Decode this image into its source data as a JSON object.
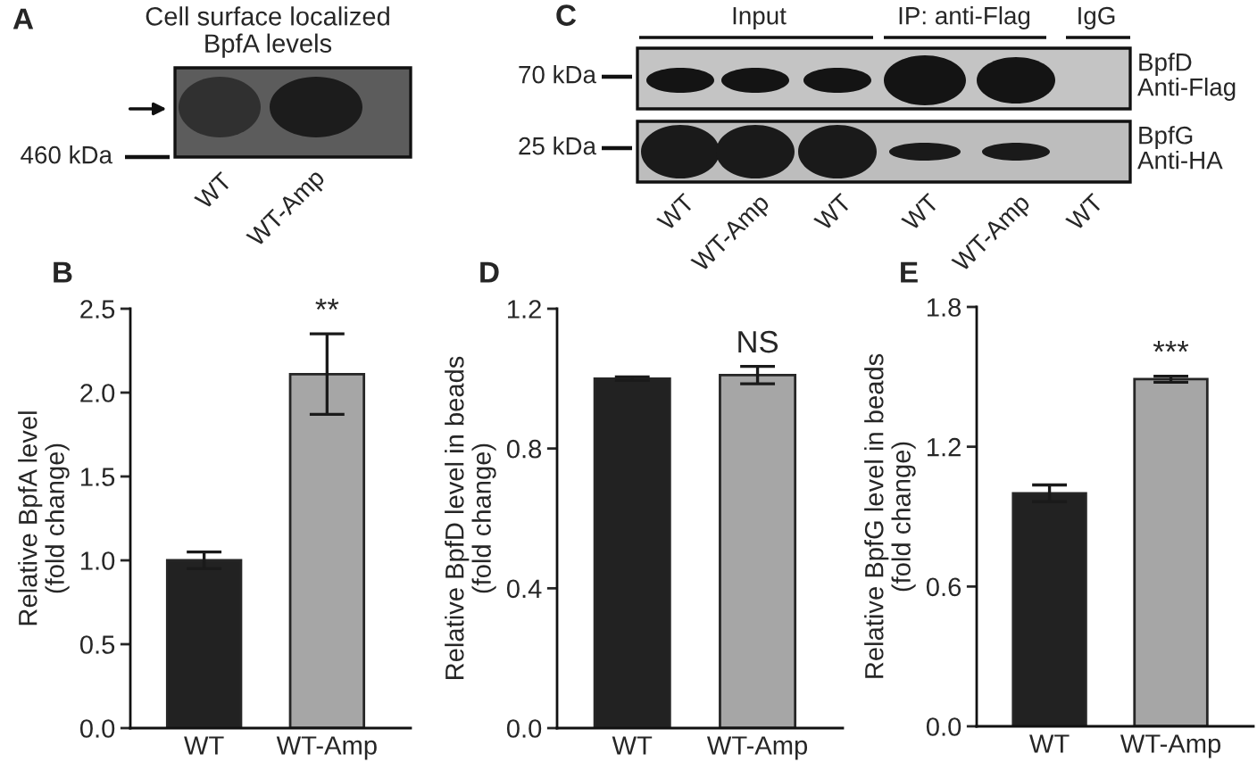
{
  "chart_data": [
    {
      "type": "other",
      "title": "A",
      "subtitle": "Cell surface localized\nBpfA levels",
      "annotations": [
        "460 kDa",
        "WT",
        "WT-Amp"
      ]
    },
    {
      "type": "other",
      "title": "C",
      "annotations": [
        "Input",
        "IP: anti-Flag",
        "IgG",
        "70 kDa",
        "25 kDa",
        "BpfD\nAnti-Flag",
        "BpfG\nAnti-HA",
        "WT",
        "WT-Amp",
        "WT",
        "WT",
        "WT-Amp",
        "WT"
      ]
    },
    {
      "type": "bar",
      "title": "B",
      "categories": [
        "WT",
        "WT-Amp"
      ],
      "values": [
        1.0,
        2.11
      ],
      "errors": [
        0.05,
        0.24
      ],
      "colors": [
        "#222222",
        "#a6a6a6"
      ],
      "ylabel": "Relative BpfA level\n(fold change)",
      "ylim": [
        0,
        2.5
      ],
      "yticks": [
        {
          "value": 0,
          "label": "0.0"
        },
        0.5,
        {
          "value": 1,
          "label": "1.0"
        },
        1.5,
        {
          "value": 2,
          "label": "2.0"
        },
        2.5
      ],
      "annotations": [
        "**"
      ]
    },
    {
      "type": "bar",
      "title": "D",
      "categories": [
        "WT",
        "WT-Amp"
      ],
      "values": [
        1.0,
        1.01
      ],
      "errors": [
        0.005,
        0.025
      ],
      "colors": [
        "#222222",
        "#a6a6a6"
      ],
      "ylabel": "Relative BpfD level in beads\n(fold change)",
      "ylim": [
        0,
        1.2
      ],
      "yticks": [
        {
          "value": 0,
          "label": "0.0"
        },
        0.4,
        0.8,
        1.2
      ],
      "annotations": [
        "NS"
      ]
    },
    {
      "type": "bar",
      "title": "E",
      "categories": [
        "WT",
        "WT-Amp"
      ],
      "values": [
        1.0,
        1.49
      ],
      "errors": [
        0.036,
        0.013
      ],
      "colors": [
        "#222222",
        "#a6a6a6"
      ],
      "ylabel": "Relative BpfG level in beads\n(fold change)",
      "ylim": [
        0,
        1.8
      ],
      "yticks": [
        {
          "value": 0,
          "label": "0.0"
        },
        0.6,
        1.2,
        1.8
      ],
      "annotations": [
        "***"
      ]
    }
  ]
}
